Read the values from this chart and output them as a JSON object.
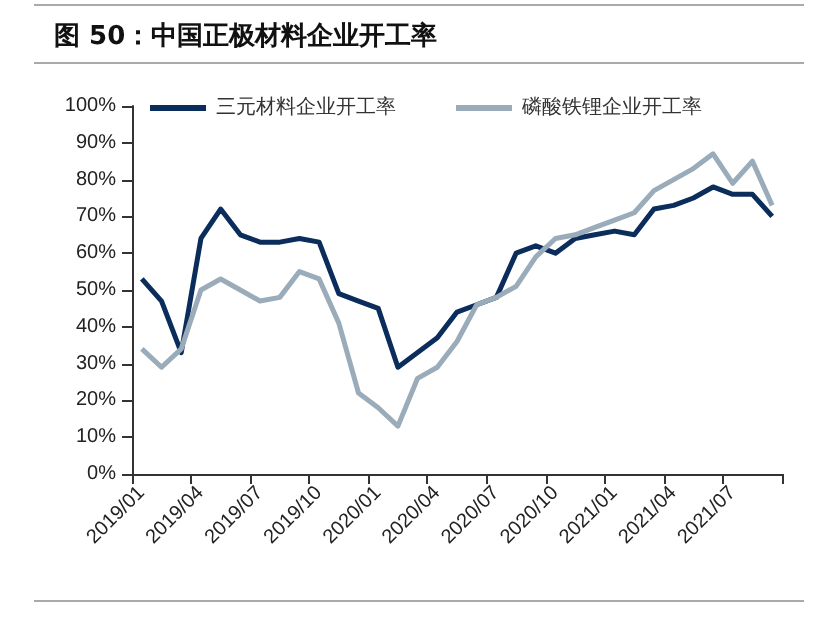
{
  "chart_data": {
    "type": "line",
    "title": "图 50：中国正极材料企业开工率",
    "categories": [
      "2019/01",
      null,
      null,
      "2019/04",
      null,
      null,
      "2019/07",
      null,
      null,
      "2019/10",
      null,
      null,
      "2020/01",
      null,
      null,
      "2020/04",
      null,
      null,
      "2020/07",
      null,
      null,
      "2020/10",
      null,
      null,
      "2021/01",
      null,
      null,
      "2021/04",
      null,
      null,
      "2021/07",
      null,
      null
    ],
    "series": [
      {
        "name": "三元材料企业开工率",
        "color": "#0b2d5b",
        "values": [
          53,
          47,
          33,
          64,
          72,
          65,
          63,
          63,
          64,
          63,
          49,
          47,
          45,
          29,
          33,
          37,
          44,
          46,
          48,
          60,
          62,
          60,
          64,
          65,
          66,
          65,
          72,
          73,
          75,
          78,
          76,
          76,
          70
        ]
      },
      {
        "name": "磷酸铁锂企业开工率",
        "color": "#9aabba",
        "values": [
          34,
          29,
          34,
          50,
          53,
          50,
          47,
          48,
          55,
          53,
          41,
          22,
          18,
          13,
          26,
          29,
          36,
          46,
          48,
          51,
          59,
          64,
          65,
          67,
          69,
          71,
          77,
          80,
          83,
          87,
          79,
          85,
          73
        ]
      }
    ],
    "ylim": [
      0,
      100
    ],
    "yticks": [
      {
        "value": 0,
        "label": "0%"
      },
      {
        "value": 10,
        "label": "10%"
      },
      {
        "value": 20,
        "label": "20%"
      },
      {
        "value": 30,
        "label": "30%"
      },
      {
        "value": 40,
        "label": "40%"
      },
      {
        "value": 50,
        "label": "50%"
      },
      {
        "value": 60,
        "label": "60%"
      },
      {
        "value": 70,
        "label": "70%"
      },
      {
        "value": 80,
        "label": "80%"
      },
      {
        "value": 90,
        "label": "90%"
      },
      {
        "value": 100,
        "label": "100%"
      }
    ],
    "grid": false,
    "legend": "top",
    "marker": "none",
    "line_style": "solid"
  }
}
